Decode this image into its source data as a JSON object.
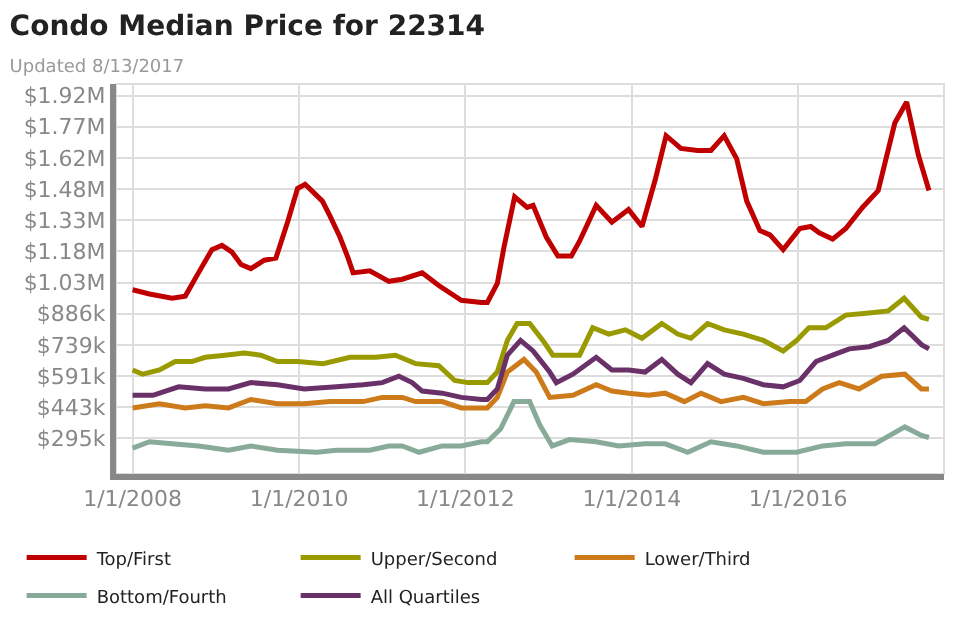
{
  "chart_data": {
    "type": "line",
    "title": "Condo Median Price for 22314",
    "subtitle": "Updated 8/13/2017",
    "xlim": [
      "2007-10-20",
      "2017-10-02"
    ],
    "xticks": [
      {
        "value": "2008-01-01",
        "label": "1/1/2008"
      },
      {
        "value": "2010-01-01",
        "label": "1/1/2010"
      },
      {
        "value": "2012-01-01",
        "label": "1/1/2012"
      },
      {
        "value": "2014-01-01",
        "label": "1/1/2014"
      },
      {
        "value": "2016-01-01",
        "label": "1/1/2016"
      }
    ],
    "ylim": [
      127000,
      1975000
    ],
    "yticks": [
      {
        "value": 295400,
        "label": "$295k"
      },
      {
        "value": 443100,
        "label": "$443k"
      },
      {
        "value": 590800,
        "label": "$591k"
      },
      {
        "value": 738500,
        "label": "$739k"
      },
      {
        "value": 886200,
        "label": "$886k"
      },
      {
        "value": 1033900,
        "label": "$1.03M"
      },
      {
        "value": 1181600,
        "label": "$1.18M"
      },
      {
        "value": 1329300,
        "label": "$1.33M"
      },
      {
        "value": 1477000,
        "label": "$1.48M"
      },
      {
        "value": 1624700,
        "label": "$1.62M"
      },
      {
        "value": 1772400,
        "label": "$1.77M"
      },
      {
        "value": 1920100,
        "label": "$1.92M"
      }
    ],
    "grid": true,
    "legend": "bottom",
    "marker": "none",
    "line_style": "solid",
    "series": [
      {
        "name": "Top/First",
        "color": "#c00000",
        "x": [
          "2008-01-01",
          "2008-03-15",
          "2008-06-22",
          "2008-08-19",
          "2008-10-16",
          "2008-12-14",
          "2009-01-27",
          "2009-03-11",
          "2009-04-21",
          "2009-06-03",
          "2009-08-01",
          "2009-09-21",
          "2009-11-11",
          "2009-12-25",
          "2010-01-27",
          "2010-02-25",
          "2010-04-13",
          "2010-05-16",
          "2010-06-29",
          "2010-08-04",
          "2010-08-26",
          "2010-11-07",
          "2011-01-30",
          "2011-03-30",
          "2011-06-25",
          "2011-09-06",
          "2011-12-14",
          "2012-03-11",
          "2012-04-06",
          "2012-05-20",
          "2012-06-18",
          "2012-08-04",
          "2012-09-28",
          "2012-10-24",
          "2012-12-21",
          "2013-02-10",
          "2013-04-10",
          "2013-05-16",
          "2013-07-28",
          "2013-10-05",
          "2013-12-17",
          "2014-02-14",
          "2014-04-13",
          "2014-05-31",
          "2014-08-04",
          "2014-10-16",
          "2014-12-14",
          "2015-02-10",
          "2015-04-06",
          "2015-05-20",
          "2015-07-17",
          "2015-08-30",
          "2015-10-27",
          "2016-01-08",
          "2016-02-25",
          "2016-04-02",
          "2016-05-31",
          "2016-07-28",
          "2016-10-09",
          "2016-12-17",
          "2017-02-28",
          "2017-04-21",
          "2017-06-11",
          "2017-07-28"
        ],
        "values": [
          1000000,
          980000,
          960000,
          970000,
          1080000,
          1190000,
          1210000,
          1180000,
          1120000,
          1100000,
          1140000,
          1150000,
          1320000,
          1480000,
          1500000,
          1470000,
          1420000,
          1350000,
          1250000,
          1150000,
          1080000,
          1090000,
          1040000,
          1050000,
          1080000,
          1020000,
          950000,
          940000,
          940000,
          1030000,
          1200000,
          1440000,
          1390000,
          1400000,
          1250000,
          1160000,
          1160000,
          1230000,
          1400000,
          1320000,
          1380000,
          1300000,
          1520000,
          1730000,
          1670000,
          1660000,
          1660000,
          1730000,
          1620000,
          1420000,
          1280000,
          1260000,
          1190000,
          1290000,
          1300000,
          1270000,
          1240000,
          1290000,
          1390000,
          1470000,
          1790000,
          1890000,
          1640000,
          1470000
        ]
      },
      {
        "name": "Upper/Second",
        "color": "#999900",
        "x": [
          "2008-01-01",
          "2008-02-14",
          "2008-04-28",
          "2008-07-06",
          "2008-09-17",
          "2008-11-15",
          "2009-02-10",
          "2009-05-05",
          "2009-07-17",
          "2009-09-28",
          "2009-12-25",
          "2010-04-17",
          "2010-08-12",
          "2010-12-03",
          "2011-02-28",
          "2011-05-27",
          "2011-09-06",
          "2011-11-15",
          "2012-01-12",
          "2012-03-11",
          "2012-04-06",
          "2012-05-20",
          "2012-07-03",
          "2012-08-15",
          "2012-10-09",
          "2012-12-06",
          "2013-01-19",
          "2013-03-19",
          "2013-05-16",
          "2013-07-13",
          "2013-09-21",
          "2013-12-03",
          "2014-02-14",
          "2014-05-12",
          "2014-07-21",
          "2014-09-17",
          "2014-11-29",
          "2015-02-10",
          "2015-05-05",
          "2015-08-01",
          "2015-10-27",
          "2015-12-25",
          "2016-02-17",
          "2016-05-01",
          "2016-07-28",
          "2016-11-07",
          "2017-01-30",
          "2017-04-10",
          "2017-06-25",
          "2017-07-28"
        ],
        "values": [
          620000,
          600000,
          620000,
          660000,
          660000,
          680000,
          690000,
          700000,
          690000,
          660000,
          660000,
          650000,
          680000,
          680000,
          690000,
          650000,
          640000,
          570000,
          560000,
          560000,
          560000,
          610000,
          760000,
          840000,
          840000,
          760000,
          690000,
          690000,
          690000,
          820000,
          790000,
          810000,
          770000,
          840000,
          790000,
          770000,
          840000,
          810000,
          790000,
          760000,
          710000,
          760000,
          820000,
          820000,
          880000,
          890000,
          900000,
          960000,
          870000,
          860000
        ]
      },
      {
        "name": "Lower/Third",
        "color": "#cc7a1a",
        "x": [
          "2008-01-01",
          "2008-04-28",
          "2008-08-19",
          "2008-11-15",
          "2009-02-25",
          "2009-06-03",
          "2009-09-28",
          "2010-01-23",
          "2010-05-16",
          "2010-10-09",
          "2011-01-01",
          "2011-03-30",
          "2011-05-27",
          "2011-09-21",
          "2011-12-14",
          "2012-03-11",
          "2012-04-06",
          "2012-05-20",
          "2012-07-03",
          "2012-09-14",
          "2012-11-07",
          "2013-01-05",
          "2013-04-17",
          "2013-07-28",
          "2013-10-05",
          "2013-12-17",
          "2014-03-15",
          "2014-05-27",
          "2014-08-19",
          "2014-10-31",
          "2015-01-27",
          "2015-05-05",
          "2015-08-01",
          "2015-11-26",
          "2016-02-03",
          "2016-04-17",
          "2016-06-29",
          "2016-09-24",
          "2017-01-01",
          "2017-04-13",
          "2017-06-25",
          "2017-07-28"
        ],
        "values": [
          440000,
          460000,
          440000,
          450000,
          440000,
          480000,
          460000,
          460000,
          470000,
          470000,
          490000,
          490000,
          470000,
          470000,
          440000,
          440000,
          440000,
          490000,
          610000,
          670000,
          610000,
          490000,
          500000,
          550000,
          520000,
          510000,
          500000,
          510000,
          470000,
          510000,
          470000,
          490000,
          460000,
          470000,
          470000,
          530000,
          560000,
          530000,
          590000,
          600000,
          530000,
          530000
        ]
      },
      {
        "name": "Bottom/Fourth",
        "color": "#88aa99",
        "x": [
          "2008-01-01",
          "2008-03-15",
          "2008-06-22",
          "2008-10-16",
          "2009-02-25",
          "2009-06-03",
          "2009-09-28",
          "2010-03-19",
          "2010-06-14",
          "2010-11-07",
          "2011-01-30",
          "2011-03-30",
          "2011-06-11",
          "2011-09-21",
          "2011-12-14",
          "2012-03-11",
          "2012-04-06",
          "2012-06-03",
          "2012-08-01",
          "2012-10-09",
          "2012-11-22",
          "2013-01-16",
          "2013-04-02",
          "2013-07-28",
          "2013-11-04",
          "2014-02-28",
          "2014-05-27",
          "2014-09-03",
          "2014-12-14",
          "2015-04-06",
          "2015-08-01",
          "2015-12-25",
          "2016-04-17",
          "2016-07-28",
          "2016-12-03",
          "2017-04-13",
          "2017-06-25",
          "2017-07-28"
        ],
        "values": [
          250000,
          280000,
          270000,
          260000,
          240000,
          260000,
          240000,
          230000,
          240000,
          240000,
          260000,
          260000,
          230000,
          260000,
          260000,
          280000,
          280000,
          340000,
          470000,
          470000,
          360000,
          260000,
          290000,
          280000,
          260000,
          270000,
          270000,
          230000,
          280000,
          260000,
          230000,
          230000,
          260000,
          270000,
          270000,
          350000,
          310000,
          300000
        ]
      },
      {
        "name": "All Quartiles",
        "color": "#6a3068",
        "x": [
          "2008-01-01",
          "2008-03-30",
          "2008-07-21",
          "2008-11-15",
          "2009-02-25",
          "2009-06-03",
          "2009-09-28",
          "2010-01-23",
          "2010-06-14",
          "2010-10-09",
          "2011-01-01",
          "2011-03-15",
          "2011-05-12",
          "2011-06-25",
          "2011-09-21",
          "2011-12-14",
          "2012-03-11",
          "2012-04-06",
          "2012-05-20",
          "2012-07-03",
          "2012-08-30",
          "2012-10-24",
          "2013-01-05",
          "2013-02-03",
          "2013-04-17",
          "2013-07-28",
          "2013-10-05",
          "2013-12-17",
          "2014-02-28",
          "2014-05-12",
          "2014-07-21",
          "2014-09-17",
          "2014-11-29",
          "2015-02-10",
          "2015-05-05",
          "2015-08-01",
          "2015-10-27",
          "2016-01-08",
          "2016-03-19",
          "2016-05-31",
          "2016-08-12",
          "2016-11-07",
          "2017-01-30",
          "2017-04-10",
          "2017-06-25",
          "2017-07-28"
        ],
        "values": [
          500000,
          500000,
          540000,
          530000,
          530000,
          560000,
          550000,
          530000,
          540000,
          550000,
          560000,
          590000,
          560000,
          520000,
          510000,
          490000,
          480000,
          480000,
          530000,
          690000,
          760000,
          710000,
          610000,
          560000,
          600000,
          680000,
          620000,
          620000,
          610000,
          670000,
          600000,
          560000,
          650000,
          600000,
          580000,
          550000,
          540000,
          570000,
          660000,
          690000,
          720000,
          730000,
          760000,
          820000,
          740000,
          720000
        ]
      }
    ]
  }
}
